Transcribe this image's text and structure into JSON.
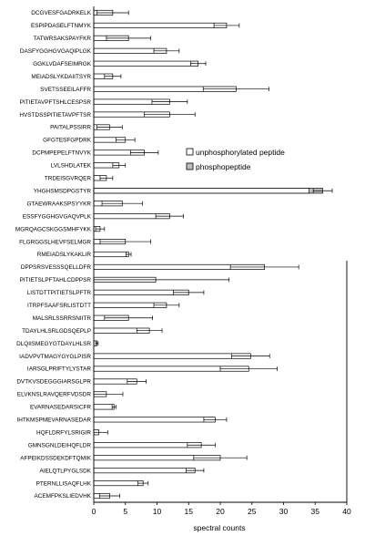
{
  "chart_data": {
    "type": "bar",
    "orientation": "horizontal",
    "grouping": "overlaid",
    "xlabel": "spectral counts",
    "xlim": [
      0,
      40
    ],
    "xticks": [
      0,
      5,
      10,
      15,
      20,
      25,
      30,
      35,
      40
    ],
    "grid": false,
    "legend_position": "right-middle",
    "legend": [
      {
        "name": "unphosphorylated peptide",
        "color": "#ffffff"
      },
      {
        "name": "phosphopeptide",
        "color": "#bfbfbf"
      }
    ],
    "categories": [
      "DCGVESFGADRKELK",
      "ESPIPDASELFTNMYK",
      "TATWRSAKSPAYFKR",
      "DASFYGGHGVGAQIPLGK",
      "GGKLVDAFSEIMRGK",
      "MEIADSLYKDAIITSYR",
      "SVETSSEEILAFFR",
      "PITIETAVPFTSHLCESPSR",
      "HVSTDSSPITIETAVPFTSR",
      "PAITALPSSIRR",
      "GFGTESFGPDRK",
      "DCPMPEPELFTNVYK",
      "LVLSHDLATEK",
      "TRDEISGVRQER",
      "YHGHSMSDPGSTYR",
      "GTAEWRAAKSPSYYKR",
      "ESSFYGGHGVGAQVPLK",
      "MGRQAGCSKGGSMHFYKK",
      "FLGRGGSLHEVFSELMGR",
      "RMEIADSLYKAKLIR",
      "DPPSRSVESSSQELLDFR",
      "PITIETSLPFTAHLCDPPSR",
      "LISTDTTPITIETSLPFTR",
      "ITRPFSAAFSRLISTDTT",
      "MALSRLSSRRSNIITR",
      "TDAYLHLSRLGDSQEPLP",
      "DLQIISMEGYGTDAYLHLSR",
      "IADVPVTMAGYGYGLPISR",
      "IARSGLPRIFTYLYSTAR",
      "DVTKVSDEGGGIARSGLPR",
      "ELVKNSLRAVQERFVDSDR",
      "EVARNASEDARSICFR",
      "IHTKMSPMEVARNASEDAR",
      "HQFLDRFYLSRIGIR",
      "GMNSGNLDEIHQFLDR",
      "AFPEIKDSSDEKDFTQMIK",
      "AIELQTLPYGLSDK",
      "PTERNLLISAQFLHK",
      "ACEMFPKSLIEDVHK"
    ],
    "series": [
      {
        "name": "unphosphorylated peptide",
        "values": [
          3,
          21,
          5.5,
          11.5,
          16.5,
          3,
          22.5,
          12,
          12,
          2.5,
          5,
          8,
          4,
          2,
          34,
          4.5,
          12,
          1,
          5,
          5.5,
          27,
          9.8,
          15,
          11.5,
          5.5,
          8.8,
          0.5,
          24.8,
          24.5,
          6.8,
          2,
          3.2,
          19.2,
          0.8,
          17,
          20,
          16,
          7.8,
          2.5
        ]
      },
      {
        "name": "phosphopeptide",
        "values": [
          0,
          0,
          0,
          0,
          0,
          0,
          0,
          0,
          0,
          0,
          0,
          0,
          0,
          0,
          36.2,
          0,
          0,
          0,
          0,
          0,
          0,
          0,
          0,
          0,
          0,
          0,
          0,
          0,
          0,
          0,
          0,
          0,
          0,
          0,
          0,
          0,
          0,
          0,
          0
        ]
      }
    ],
    "error": [
      2.5,
      2,
      3.5,
      2,
      1.2,
      1.3,
      5.2,
      2.8,
      4,
      2,
      1.5,
      2.2,
      1,
      1,
      1.5,
      3.2,
      2.2,
      0.7,
      4,
      0.4,
      5.4,
      11.6,
      2.4,
      2,
      3.8,
      2,
      0.2,
      3,
      4.5,
      1.5,
      2.6,
      0.3,
      1.8,
      1.4,
      2.2,
      4.2,
      1.4,
      0.8,
      1.6
    ]
  }
}
